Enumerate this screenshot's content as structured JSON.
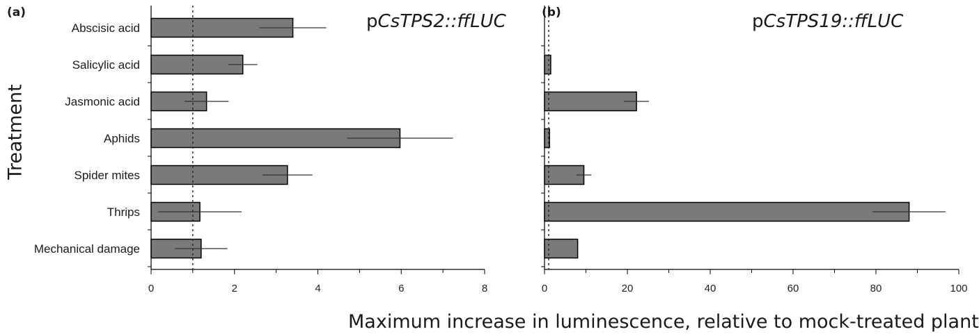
{
  "figure": {
    "ylabel": "Treatment",
    "xlabel": "Maximum increase in luminescence, relative to mock-treated plants",
    "bar_color": "#7a7a7a",
    "bar_stroke": "#000000",
    "reference_line": "dotted line at x = 1"
  },
  "panels": [
    {
      "label": "(a)",
      "construct_prefix": "p",
      "construct_name": "CsTPS2::ffLUC"
    },
    {
      "label": "(b)",
      "construct_prefix": "p",
      "construct_name": "CsTPS19::ffLUC"
    }
  ],
  "chart_data": [
    {
      "type": "bar",
      "orientation": "horizontal",
      "title": "(a)",
      "annotation": "pCsTPS2::ffLUC",
      "categories": [
        "Abscisic acid",
        "Salicylic acid",
        "Jasmonic acid",
        "Aphids",
        "Spider mites",
        "Thrips",
        "Mechanical damage"
      ],
      "series": [
        {
          "values": [
            3.4,
            2.2,
            1.33,
            5.97,
            3.27,
            1.17,
            1.2
          ],
          "error": [
            0.8,
            0.35,
            0.53,
            1.27,
            0.6,
            1.0,
            0.63
          ]
        }
      ],
      "xlim": [
        0,
        8
      ],
      "xticks": [
        0,
        2,
        4,
        6,
        8
      ],
      "reference_x": 1,
      "grid": false
    },
    {
      "type": "bar",
      "orientation": "horizontal",
      "title": "(b)",
      "annotation": "pCsTPS19::ffLUC",
      "categories": [
        "Abscisic acid",
        "Salicylic acid",
        "Jasmonic acid",
        "Aphids",
        "Spider mites",
        "Thrips",
        "Mechanical damage"
      ],
      "series": [
        {
          "values": [
            null,
            1.5,
            22.2,
            1.2,
            9.5,
            88.0,
            8.0
          ],
          "error": [
            null,
            0,
            3.0,
            0,
            1.8,
            8.8,
            0
          ]
        }
      ],
      "xlim": [
        0,
        100
      ],
      "xticks": [
        0,
        20,
        40,
        60,
        80,
        100
      ],
      "reference_x": 1,
      "grid": false
    }
  ]
}
